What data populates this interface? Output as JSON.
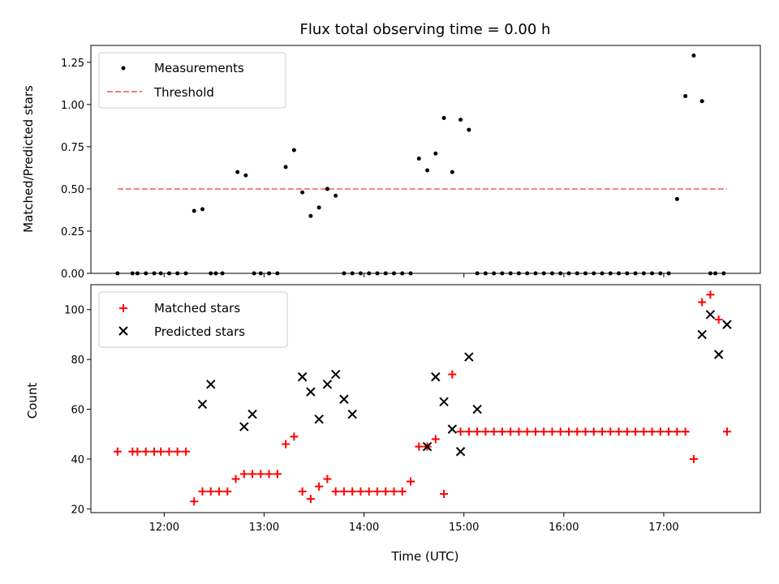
{
  "chart_data": [
    {
      "type": "scatter",
      "title": "Flux total observing time = 0.00 h",
      "xlabel": "",
      "ylabel": "Matched/Predicted stars",
      "x_unit": "hours UTC",
      "xlim": [
        "11:16",
        "17:58"
      ],
      "ylim": [
        0,
        1.35
      ],
      "yticks": [
        "0.00",
        "0.25",
        "0.50",
        "0.75",
        "1.00",
        "1.25"
      ],
      "legend_position": "top-left",
      "series": [
        {
          "name": "Measurements",
          "marker": "dot",
          "color": "#000000",
          "x": [
            "11:32",
            "11:41",
            "11:44",
            "11:49",
            "11:54",
            "11:58",
            "12:03",
            "12:08",
            "12:13",
            "12:18",
            "12:23",
            "12:28",
            "12:31",
            "12:35",
            "12:44",
            "12:49",
            "12:54",
            "12:58",
            "13:03",
            "13:08",
            "13:13",
            "13:18",
            "13:23",
            "13:28",
            "13:33",
            "13:38",
            "13:43",
            "13:48",
            "13:53",
            "13:58",
            "14:03",
            "14:08",
            "14:13",
            "14:18",
            "14:23",
            "14:28",
            "14:33",
            "14:38",
            "14:43",
            "14:48",
            "14:53",
            "14:58",
            "15:03",
            "15:08",
            "15:13",
            "15:18",
            "15:23",
            "15:28",
            "15:33",
            "15:38",
            "15:43",
            "15:48",
            "15:53",
            "15:58",
            "16:03",
            "16:08",
            "16:13",
            "16:18",
            "16:23",
            "16:28",
            "16:33",
            "16:38",
            "16:43",
            "16:48",
            "16:53",
            "16:58",
            "17:03",
            "17:08",
            "17:13",
            "17:18",
            "17:23",
            "17:28",
            "17:31",
            "17:36"
          ],
          "y": [
            0,
            0,
            0,
            0,
            0,
            0,
            0,
            0,
            0,
            0.37,
            0.38,
            0,
            0,
            0,
            0.6,
            0.58,
            0,
            0,
            0,
            0,
            0.63,
            0.73,
            0.48,
            0.34,
            0.39,
            0.5,
            0.46,
            0,
            0,
            0,
            0,
            0,
            0,
            0,
            0,
            0,
            0.68,
            0.61,
            0.71,
            0.92,
            0.6,
            0.91,
            0.85,
            0,
            0,
            0,
            0,
            0,
            0,
            0,
            0,
            0,
            0,
            0,
            0,
            0,
            0,
            0,
            0,
            0,
            0,
            0,
            0,
            0,
            0,
            0,
            0,
            0.44,
            1.05,
            1.29,
            1.02,
            0,
            0,
            0
          ]
        },
        {
          "name": "Threshold",
          "line_style": "dashed",
          "color": "#f08080",
          "x": [
            "11:32",
            "17:38"
          ],
          "y": [
            0.5,
            0.5
          ]
        }
      ]
    },
    {
      "type": "scatter",
      "title": "",
      "xlabel": "Time (UTC)",
      "ylabel": "Count",
      "x_unit": "hours UTC",
      "xlim": [
        "11:16",
        "17:58"
      ],
      "ylim": [
        18.5,
        110
      ],
      "yticks": [
        "20",
        "40",
        "60",
        "80",
        "100"
      ],
      "xticks": [
        "12:00",
        "13:00",
        "14:00",
        "15:00",
        "16:00",
        "17:00"
      ],
      "legend_position": "top-left",
      "series": [
        {
          "name": "Matched stars",
          "marker": "plus",
          "color": "#ff0000",
          "x": [
            "11:32",
            "11:41",
            "11:44",
            "11:49",
            "11:54",
            "11:58",
            "12:03",
            "12:08",
            "12:13",
            "12:18",
            "12:23",
            "12:28",
            "12:33",
            "12:38",
            "12:43",
            "12:48",
            "12:53",
            "12:58",
            "13:03",
            "13:08",
            "13:13",
            "13:18",
            "13:23",
            "13:28",
            "13:33",
            "13:38",
            "13:43",
            "13:48",
            "13:53",
            "13:58",
            "14:03",
            "14:08",
            "14:13",
            "14:18",
            "14:23",
            "14:28",
            "14:33",
            "14:38",
            "14:43",
            "14:48",
            "14:53",
            "14:58",
            "15:03",
            "15:08",
            "15:13",
            "15:18",
            "15:23",
            "15:28",
            "15:33",
            "15:38",
            "15:43",
            "15:48",
            "15:53",
            "15:58",
            "16:03",
            "16:08",
            "16:13",
            "16:18",
            "16:23",
            "16:28",
            "16:33",
            "16:38",
            "16:43",
            "16:48",
            "16:53",
            "16:58",
            "17:03",
            "17:08",
            "17:13",
            "17:18",
            "17:23",
            "17:28",
            "17:33",
            "17:38"
          ],
          "y": [
            43,
            43,
            43,
            43,
            43,
            43,
            43,
            43,
            43,
            23,
            27,
            27,
            27,
            27,
            32,
            34,
            34,
            34,
            34,
            34,
            46,
            49,
            27,
            24,
            29,
            32,
            27,
            27,
            27,
            27,
            27,
            27,
            27,
            27,
            27,
            31,
            45,
            45,
            48,
            26,
            74,
            51,
            51,
            51,
            51,
            51,
            51,
            51,
            51,
            51,
            51,
            51,
            51,
            51,
            51,
            51,
            51,
            51,
            51,
            51,
            51,
            51,
            51,
            51,
            51,
            51,
            51,
            51,
            51,
            40,
            103,
            106,
            96,
            51
          ]
        },
        {
          "name": "Predicted stars",
          "marker": "x",
          "color": "#000000",
          "x": [
            "12:23",
            "12:28",
            "12:48",
            "12:53",
            "13:23",
            "13:28",
            "13:33",
            "13:38",
            "13:43",
            "13:48",
            "13:53",
            "14:38",
            "14:43",
            "14:48",
            "14:53",
            "14:58",
            "15:03",
            "15:08",
            "17:23",
            "17:28",
            "17:33",
            "17:38"
          ],
          "y": [
            62,
            70,
            53,
            58,
            73,
            67,
            56,
            70,
            74,
            64,
            58,
            45,
            73,
            63,
            52,
            43,
            81,
            60,
            90,
            98,
            82,
            94
          ]
        }
      ]
    }
  ]
}
